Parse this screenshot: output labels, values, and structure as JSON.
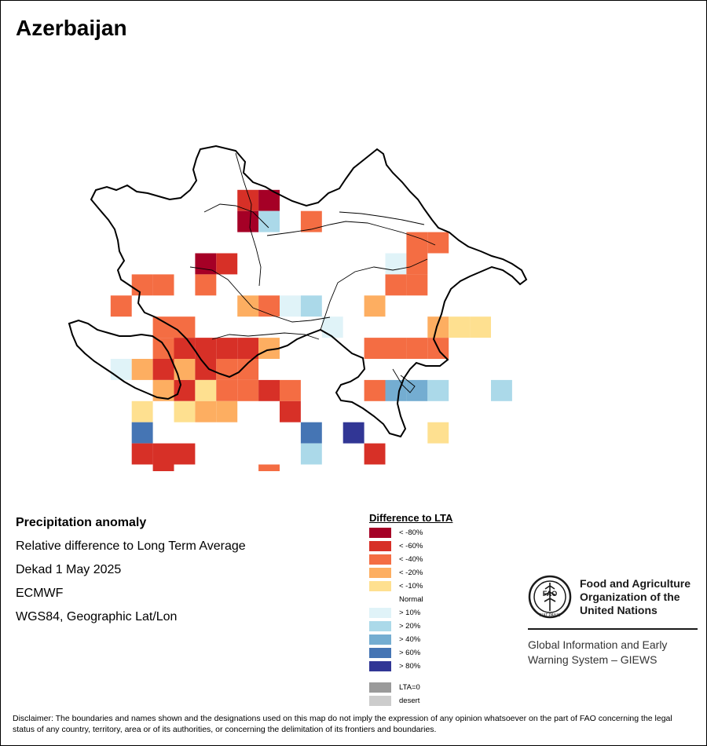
{
  "map_title": "Azerbaijan",
  "info": {
    "heading": "Precipitation anomaly",
    "line1": "Relative difference to Long Term Average",
    "line2": "Dekad 1 May 2025",
    "line3": "ECMWF",
    "line4": "WGS84, Geographic Lat/Lon"
  },
  "legend": {
    "title": "Difference to LTA",
    "classes": [
      {
        "label": "< -80%",
        "color": "#a50026"
      },
      {
        "label": "< -60%",
        "color": "#d73027"
      },
      {
        "label": "< -40%",
        "color": "#f46d43"
      },
      {
        "label": "< -20%",
        "color": "#fdae61"
      },
      {
        "label": "< -10%",
        "color": "#fee090"
      },
      {
        "label": "Normal",
        "color": "#ffffff"
      },
      {
        "label": "> 10%",
        "color": "#e0f3f8"
      },
      {
        "label": "> 20%",
        "color": "#abd9e9"
      },
      {
        "label": "> 40%",
        "color": "#74add1"
      },
      {
        "label": "> 60%",
        "color": "#4575b4"
      },
      {
        "label": "> 80%",
        "color": "#313695"
      }
    ],
    "extra": [
      {
        "label": "LTA=0",
        "color": "#9a9a9a"
      },
      {
        "label": "desert",
        "color": "#cccccc"
      }
    ]
  },
  "grid_rows": [
    "........................",
    ".........................",
    "........ba............",
    "........ah.c..........",
    "................cc.....",
    "......ab.......gc.....",
    "...cc.c.......fcc.....",
    "..c.....dcgh..d....",
    "....cc......g....dee......",
    "....cbbbbd....cccc.....",
    "..gdbdbcc............",
    "....dbeccbc...ciih..h",
    "...e.edd..b..........",
    "...j.......j.k...e....",
    "...bbb.....h..b.",
    "....b....c........"
  ],
  "fao": {
    "name_line1": "Food and Agriculture",
    "name_line2": "Organization of the",
    "name_line3": "United Nations",
    "giews_line1": "Global Information and Early",
    "giews_line2": "Warning System – GIEWS",
    "logo_text": "FAO",
    "logo_motto": "FIAT PANIS"
  },
  "disclaimer": "Disclaimer: The boundaries and names shown and the designations used on this map do not imply the expression of any opinion whatsoever on the part of FAO concerning the legal status of any country, territory, area or of its authorities, or concerning the delimitation of its frontiers and boundaries."
}
